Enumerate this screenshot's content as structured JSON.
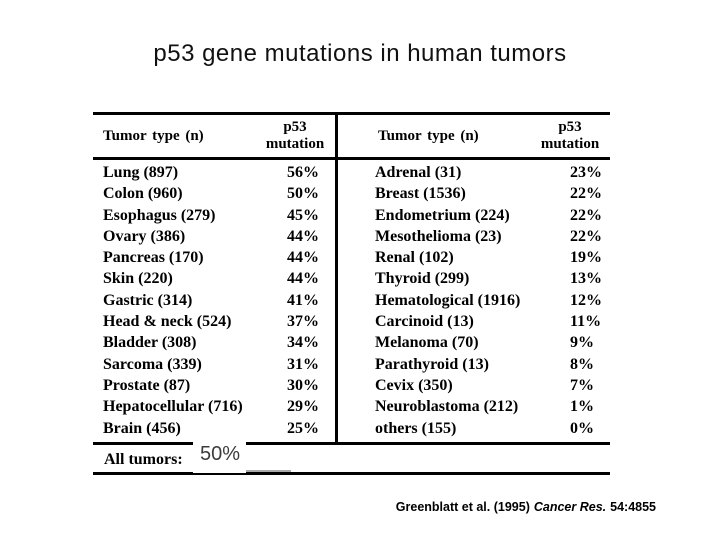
{
  "title": "p53 gene mutations in human tumors",
  "table": {
    "header": {
      "tumor_type": "Tumor type (n)",
      "p53_line1": "p53",
      "p53_line2": "mutation"
    },
    "left_rows": [
      {
        "name": "Lung (897)",
        "pct": "56%"
      },
      {
        "name": "Colon (960)",
        "pct": "50%"
      },
      {
        "name": "Esophagus (279)",
        "pct": "45%"
      },
      {
        "name": "Ovary (386)",
        "pct": "44%"
      },
      {
        "name": "Pancreas (170)",
        "pct": "44%"
      },
      {
        "name": "Skin (220)",
        "pct": "44%"
      },
      {
        "name": "Gastric (314)",
        "pct": "41%"
      },
      {
        "name": "Head & neck (524)",
        "pct": "37%"
      },
      {
        "name": "Bladder (308)",
        "pct": "34%"
      },
      {
        "name": "Sarcoma (339)",
        "pct": "31%"
      },
      {
        "name": "Prostate (87)",
        "pct": "30%"
      },
      {
        "name": "Hepatocellular (716)",
        "pct": "29%"
      },
      {
        "name": "Brain (456)",
        "pct": "25%"
      }
    ],
    "right_rows": [
      {
        "name": "Adrenal (31)",
        "pct": "23%"
      },
      {
        "name": "Breast (1536)",
        "pct": "22%"
      },
      {
        "name": "Endometrium (224)",
        "pct": "22%"
      },
      {
        "name": "Mesothelioma (23)",
        "pct": "22%"
      },
      {
        "name": "Renal (102)",
        "pct": "19%"
      },
      {
        "name": "Thyroid (299)",
        "pct": "13%"
      },
      {
        "name": "Hematological (1916)",
        "pct": "12%"
      },
      {
        "name": "Carcinoid (13)",
        "pct": "11%"
      },
      {
        "name": "Melanoma (70)",
        "pct": "9%"
      },
      {
        "name": "Parathyroid (13)",
        "pct": "8%"
      },
      {
        "name": "Cevix (350)",
        "pct": "7%"
      },
      {
        "name": "Neuroblastoma (212)",
        "pct": "1%"
      },
      {
        "name": "others (155)",
        "pct": "0%"
      }
    ],
    "footer_label": "All tumors:",
    "footer_value": "50%"
  },
  "citation": {
    "part1": "Greenblatt et al. (1995)",
    "part2_italic": "Cancer Res.",
    "part3": "54:4855"
  },
  "colors": {
    "line": "#000000",
    "answer_text": "#3c3c3c",
    "answer_underline": "#aaaaaa",
    "background": "#ffffff"
  }
}
